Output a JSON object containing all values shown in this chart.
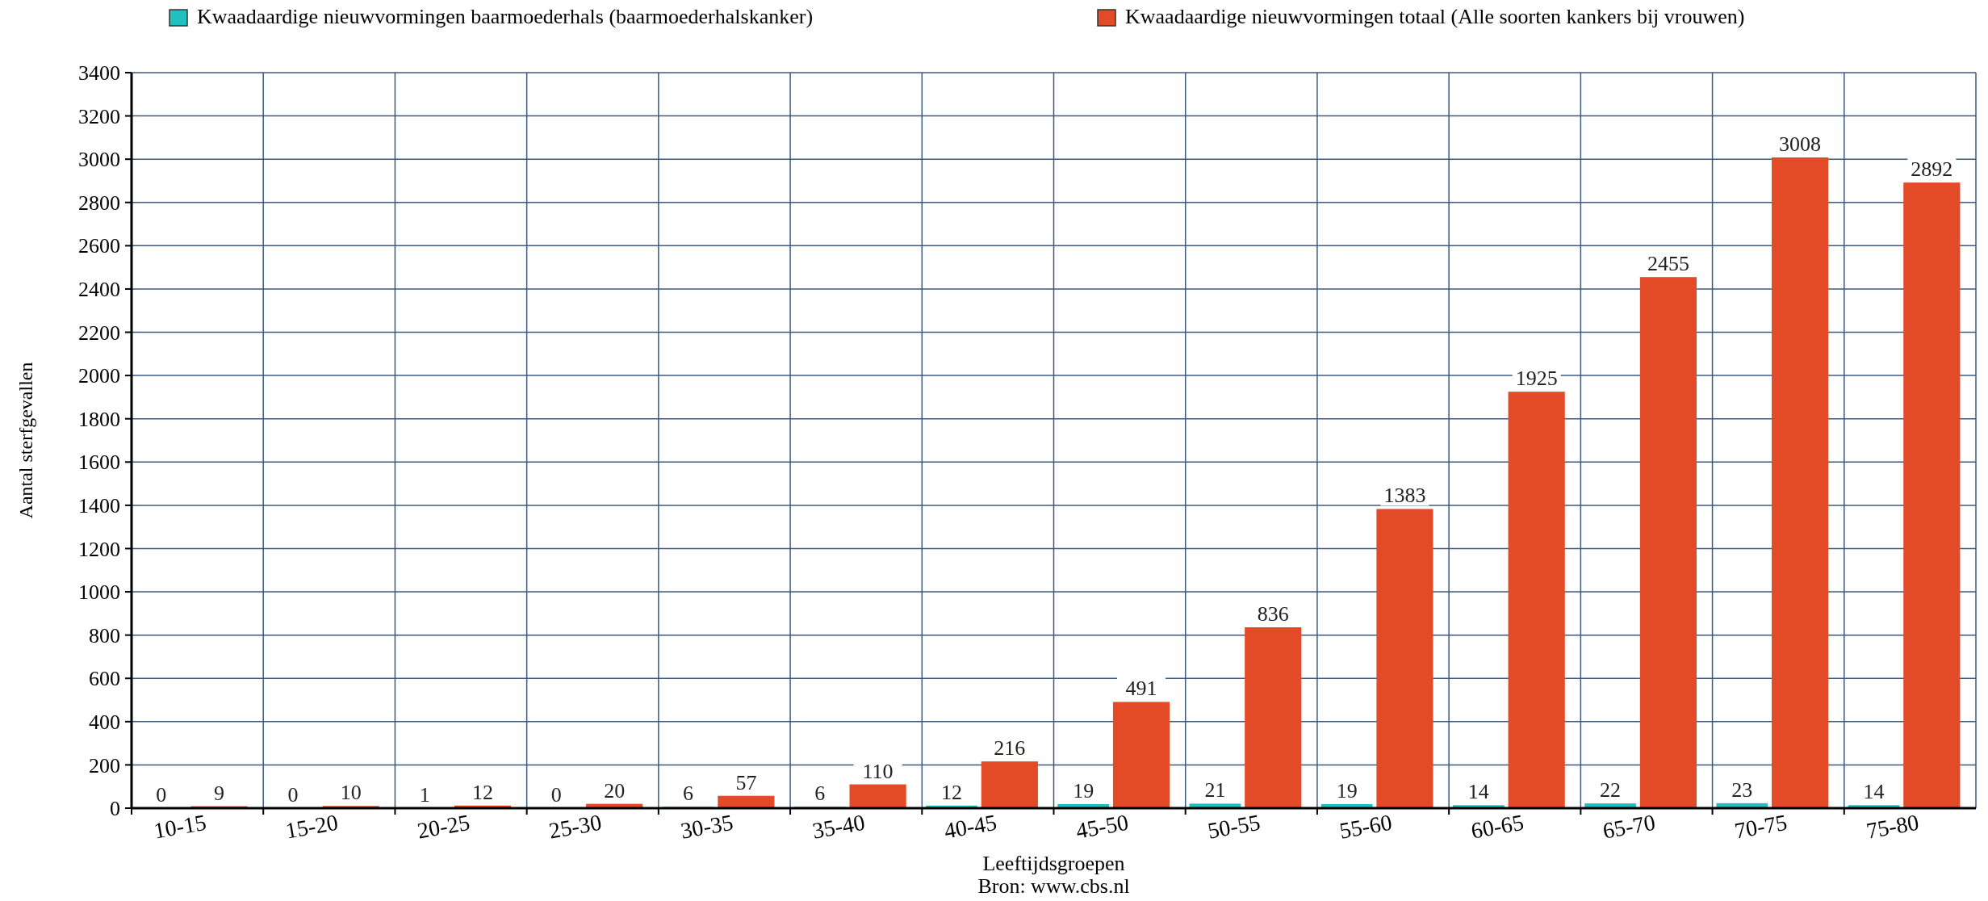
{
  "chart_data": {
    "type": "bar",
    "xlabel": "Leeftijdsgroepen",
    "ylabel": "Aantal sterfgevallen",
    "annotations": [
      "Bron: www.cbs.nl"
    ],
    "categories": [
      "10-15",
      "15-20",
      "20-25",
      "25-30",
      "30-35",
      "35-40",
      "40-45",
      "45-50",
      "50-55",
      "55-60",
      "60-65",
      "65-70",
      "70-75",
      "75-80"
    ],
    "series": [
      {
        "name": "Kwaadaardige nieuwvormingen baarmoederhals (baarmoederhalskanker)",
        "color": "#20c0c0",
        "values": [
          0,
          0,
          1,
          0,
          6,
          6,
          12,
          19,
          21,
          19,
          14,
          22,
          23,
          14
        ]
      },
      {
        "name": "Kwaadaardige nieuwvormingen totaal (Alle soorten kankers bij vrouwen)",
        "color": "#e24a28",
        "values": [
          9,
          10,
          12,
          20,
          57,
          110,
          216,
          491,
          836,
          1383,
          1925,
          2455,
          3008,
          2892
        ]
      }
    ],
    "ylim": [
      0,
      3400
    ],
    "yticks": [
      0,
      200,
      400,
      600,
      800,
      1000,
      1200,
      1400,
      1600,
      1800,
      2000,
      2200,
      2400,
      2600,
      2800,
      3000,
      3200,
      3400
    ],
    "grid": true,
    "legend": "top",
    "data_labels": true
  }
}
